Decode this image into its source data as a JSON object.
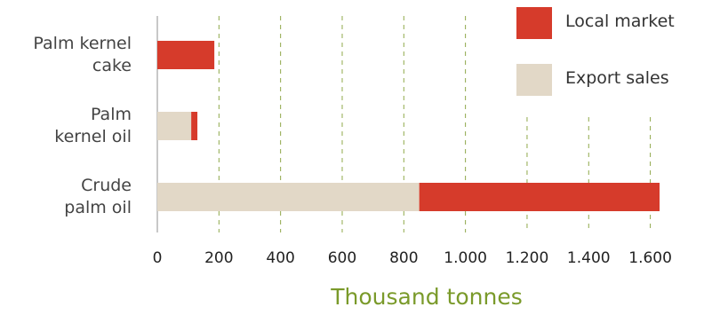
{
  "chart_data": {
    "type": "bar",
    "orientation": "horizontal",
    "stacked": true,
    "categories": [
      "Palm kernel cake",
      "Palm kernel oil",
      "Crude palm oil"
    ],
    "category_lines": [
      [
        "Palm kernel",
        "cake"
      ],
      [
        "Palm",
        "kernel oil"
      ],
      [
        "Crude",
        "palm oil"
      ]
    ],
    "series": [
      {
        "name": "Export sales",
        "color": "#e2d8c7",
        "values": [
          0,
          110,
          850
        ]
      },
      {
        "name": "Local market",
        "color": "#d63b2b",
        "values": [
          185,
          20,
          780
        ]
      }
    ],
    "xlim": [
      0,
      1700
    ],
    "xticks": [
      0,
      200,
      400,
      600,
      800,
      1000,
      1200,
      1400,
      1600
    ],
    "xtick_labels": [
      "0",
      "200",
      "400",
      "600",
      "800",
      "1.000",
      "1.200",
      "1.400",
      "1.600"
    ],
    "xlabel": "Thousand tonnes",
    "grid": "vertical dashed",
    "legend_position": "top-right"
  }
}
